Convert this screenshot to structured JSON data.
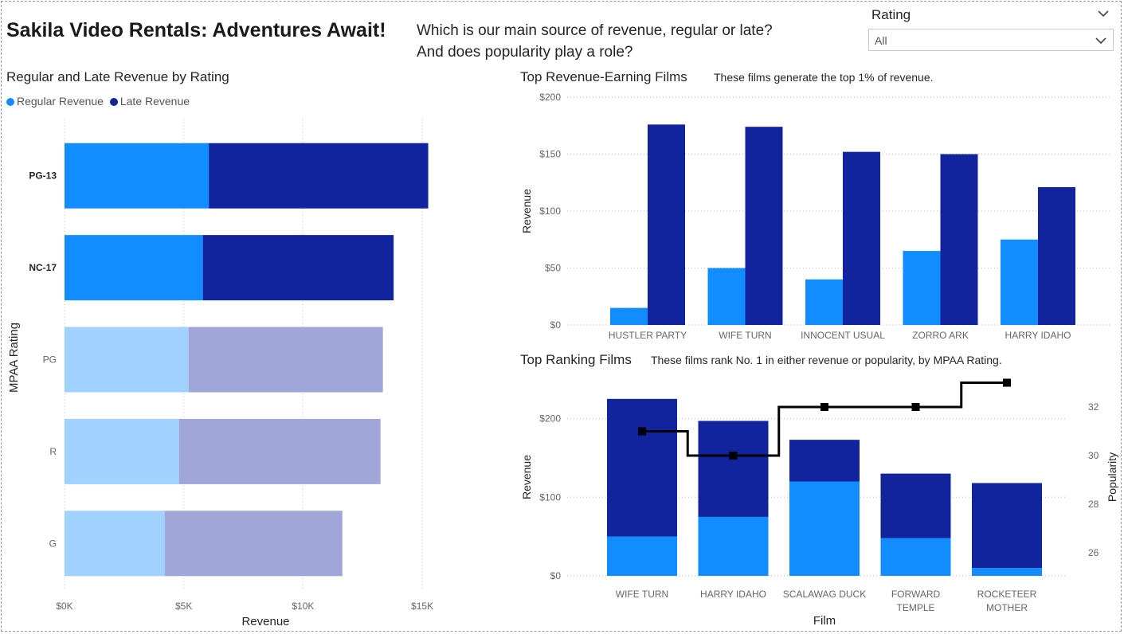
{
  "header": {
    "title": "Sakila Video Rentals: Adventures Await!",
    "subtitle_line1": "Which is our main source of revenue, regular or late?",
    "subtitle_line2": "And does popularity play a role?"
  },
  "slicer": {
    "title": "Rating",
    "value": "All",
    "collapse_icon": "chevron-down-icon",
    "dropdown_icon": "chevron-down-icon"
  },
  "colors": {
    "regular": "#118DFF",
    "late": "#12239E",
    "regular_dim": "#A0D1FF",
    "late_dim": "#A0A7D8",
    "line": "#000000",
    "grid": "#c8c8c8",
    "axis_text": "#666666"
  },
  "charts": {
    "rating": {
      "title": "Regular and Late Revenue by Rating",
      "legend": [
        {
          "label": "Regular Revenue",
          "color": "#118DFF"
        },
        {
          "label": "Late Revenue",
          "color": "#12239E"
        }
      ]
    },
    "top_films": {
      "title": "Top Revenue-Earning Films",
      "note": "These films generate the top 1% of revenue."
    },
    "ranking": {
      "title": "Top Ranking Films",
      "note": "These films rank No. 1 in either revenue or popularity, by MPAA Rating."
    }
  },
  "chart_data": [
    {
      "type": "bar",
      "orientation": "horizontal",
      "stacked": true,
      "title": "Regular and Late Revenue by Rating",
      "categories": [
        "PG-13",
        "NC-17",
        "PG",
        "R",
        "G"
      ],
      "highlighted": [
        "PG-13",
        "NC-17"
      ],
      "series": [
        {
          "name": "Regular Revenue",
          "values": [
            6050,
            5800,
            5200,
            4800,
            4200
          ]
        },
        {
          "name": "Late Revenue",
          "values": [
            9200,
            8000,
            8150,
            8450,
            7450
          ]
        }
      ],
      "xlabel": "Revenue",
      "ylabel": "MPAA Rating",
      "xlim": [
        0,
        16000
      ],
      "xticks": [
        0,
        5000,
        10000,
        15000
      ],
      "xtick_labels": [
        "$0K",
        "$5K",
        "$10K",
        "$15K"
      ],
      "grid": true,
      "legend": "top-left"
    },
    {
      "type": "bar",
      "grouped": true,
      "title": "Top Revenue-Earning Films",
      "categories": [
        "HUSTLER PARTY",
        "WIFE TURN",
        "INNOCENT USUAL",
        "ZORRO ARK",
        "HARRY IDAHO"
      ],
      "series": [
        {
          "name": "Regular Revenue",
          "values": [
            15,
            50,
            40,
            65,
            75
          ]
        },
        {
          "name": "Late Revenue",
          "values": [
            176,
            174,
            152,
            150,
            121
          ]
        }
      ],
      "ylabel": "Revenue",
      "ylim": [
        0,
        200
      ],
      "yticks": [
        0,
        50,
        100,
        150,
        200
      ],
      "ytick_labels": [
        "$0",
        "$50",
        "$100",
        "$150",
        "$200"
      ],
      "grid": true
    },
    {
      "type": "bar",
      "stacked": true,
      "combo_line": true,
      "title": "Top Ranking Films",
      "categories": [
        [
          "WIFE TURN"
        ],
        [
          "HARRY IDAHO"
        ],
        [
          "SCALAWAG DUCK"
        ],
        [
          "FORWARD",
          "TEMPLE"
        ],
        [
          "ROCKETEER",
          "MOTHER"
        ]
      ],
      "series": [
        {
          "name": "Regular Revenue",
          "values": [
            50,
            75,
            120,
            48,
            10
          ]
        },
        {
          "name": "Late Revenue",
          "values": [
            175,
            122,
            53,
            82,
            108
          ]
        }
      ],
      "line": {
        "name": "Popularity",
        "values": [
          31,
          30,
          32,
          32,
          33
        ],
        "shape": "step"
      },
      "xlabel": "Film",
      "ylabel": "Revenue",
      "y2label": "Popularity",
      "ylim": [
        0,
        240
      ],
      "yticks": [
        0,
        100,
        200
      ],
      "ytick_labels": [
        "$0",
        "$100",
        "$200"
      ],
      "y2lim": [
        25,
        33.8
      ],
      "y2ticks": [
        26,
        28,
        30,
        32
      ],
      "y2tick_labels": [
        "26",
        "28",
        "30",
        "32"
      ],
      "grid": true
    }
  ]
}
